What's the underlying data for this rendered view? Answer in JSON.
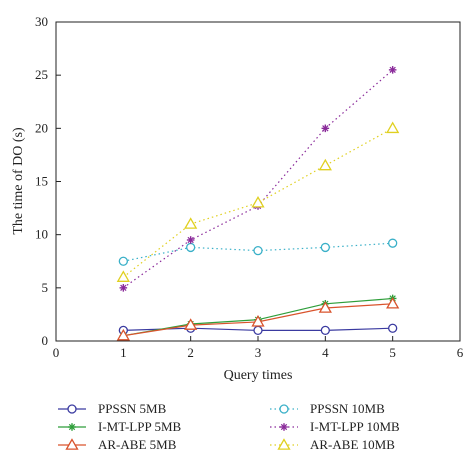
{
  "chart_data": {
    "type": "line",
    "title": "",
    "xlabel": "Query times",
    "ylabel": "The time of DO (s)",
    "xlim": [
      0,
      6
    ],
    "ylim": [
      0,
      30
    ],
    "xticks": [
      0,
      1,
      2,
      3,
      4,
      5,
      6
    ],
    "yticks": [
      0,
      5,
      10,
      15,
      20,
      25,
      30
    ],
    "grid": false,
    "legend_placement": "bottom, outside, two columns",
    "x": [
      1,
      2,
      3,
      4,
      5
    ],
    "series": [
      {
        "name": "PPSSN 5MB",
        "values": [
          1.0,
          1.2,
          1.0,
          1.0,
          1.2
        ],
        "color": "#3a3aa0",
        "marker": "circle",
        "dash": "solid"
      },
      {
        "name": "I-MT-LPP 5MB",
        "values": [
          0.5,
          1.6,
          2.0,
          3.5,
          4.0
        ],
        "color": "#2e9e3a",
        "marker": "star",
        "dash": "solid"
      },
      {
        "name": "AR-ABE 5MB",
        "values": [
          0.5,
          1.5,
          1.8,
          3.1,
          3.5
        ],
        "color": "#d9532c",
        "marker": "triangle",
        "dash": "solid"
      },
      {
        "name": "PPSSN 10MB",
        "values": [
          7.5,
          8.8,
          8.5,
          8.8,
          9.2
        ],
        "color": "#3ab0c8",
        "marker": "circle",
        "dash": "dotted"
      },
      {
        "name": "I-MT-LPP 10MB",
        "values": [
          5.0,
          9.5,
          12.7,
          20.0,
          25.5
        ],
        "color": "#8a2a9a",
        "marker": "star",
        "dash": "dotted"
      },
      {
        "name": "AR-ABE 10MB",
        "values": [
          6.0,
          11.0,
          13.0,
          16.5,
          20.0
        ],
        "color": "#e0d020",
        "marker": "triangle",
        "dash": "dotted"
      }
    ]
  }
}
